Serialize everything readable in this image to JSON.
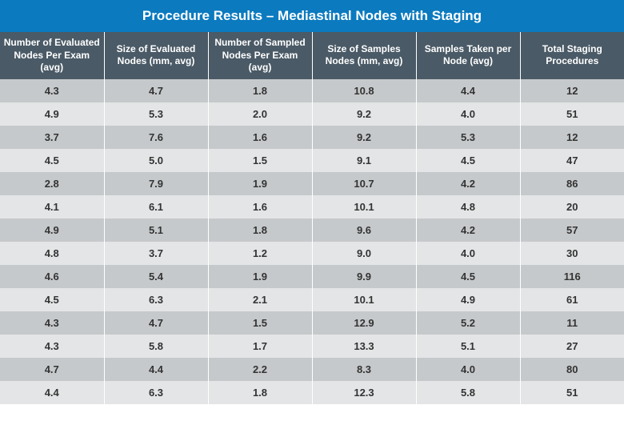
{
  "title": "Procedure Results – Mediastinal Nodes with Staging",
  "colors": {
    "title_bg": "#0b7abf",
    "title_text": "#ffffff",
    "header_bg": "#4a5a66",
    "header_text": "#ffffff",
    "row_odd_bg": "#c6c9cb",
    "row_even_bg": "#e3e5e6",
    "cell_text": "#333333"
  },
  "fonts": {
    "title_size": 17,
    "header_size": 12,
    "cell_size": 13
  },
  "columns": [
    "Number of Evaluated Nodes Per Exam (avg)",
    "Size of Evaluated Nodes (mm, avg)",
    "Number of Sampled Nodes Per Exam (avg)",
    "Size of Samples Nodes (mm, avg)",
    "Samples Taken per Node (avg)",
    "Total Staging Procedures"
  ],
  "rows": [
    [
      "4.3",
      "4.7",
      "1.8",
      "10.8",
      "4.4",
      "12"
    ],
    [
      "4.9",
      "5.3",
      "2.0",
      "9.2",
      "4.0",
      "51"
    ],
    [
      "3.7",
      "7.6",
      "1.6",
      "9.2",
      "5.3",
      "12"
    ],
    [
      "4.5",
      "5.0",
      "1.5",
      "9.1",
      "4.5",
      "47"
    ],
    [
      "2.8",
      "7.9",
      "1.9",
      "10.7",
      "4.2",
      "86"
    ],
    [
      "4.1",
      "6.1",
      "1.6",
      "10.1",
      "4.8",
      "20"
    ],
    [
      "4.9",
      "5.1",
      "1.8",
      "9.6",
      "4.2",
      "57"
    ],
    [
      "4.8",
      "3.7",
      "1.2",
      "9.0",
      "4.0",
      "30"
    ],
    [
      "4.6",
      "5.4",
      "1.9",
      "9.9",
      "4.5",
      "116"
    ],
    [
      "4.5",
      "6.3",
      "2.1",
      "10.1",
      "4.9",
      "61"
    ],
    [
      "4.3",
      "4.7",
      "1.5",
      "12.9",
      "5.2",
      "11"
    ],
    [
      "4.3",
      "5.8",
      "1.7",
      "13.3",
      "5.1",
      "27"
    ],
    [
      "4.7",
      "4.4",
      "2.2",
      "8.3",
      "4.0",
      "80"
    ],
    [
      "4.4",
      "6.3",
      "1.8",
      "12.3",
      "5.8",
      "51"
    ]
  ]
}
